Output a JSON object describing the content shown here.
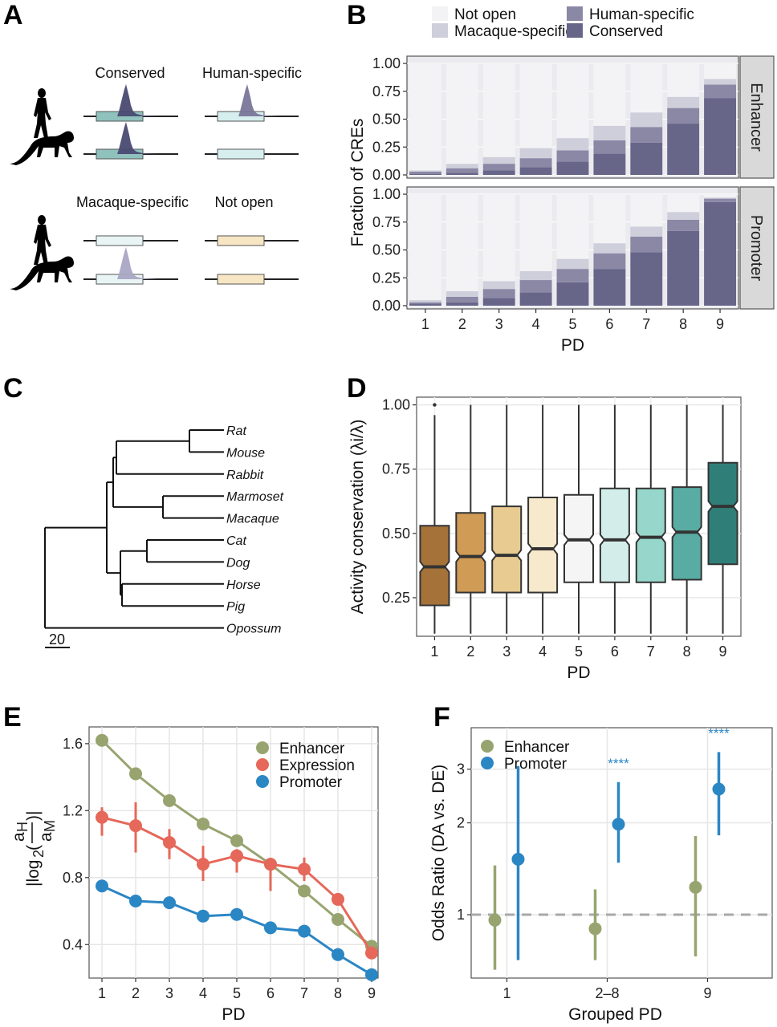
{
  "panels": {
    "A": {
      "letter": "A"
    },
    "B": {
      "letter": "B"
    },
    "C": {
      "letter": "C"
    },
    "D": {
      "letter": "D"
    },
    "E": {
      "letter": "E"
    },
    "F": {
      "letter": "F"
    }
  },
  "panelA": {
    "categories": [
      {
        "label": "Conserved",
        "human_peak": true,
        "macaque_peak": true,
        "box_color": "#8fc1bd",
        "peak_color": "#4a4a72"
      },
      {
        "label": "Human-specific",
        "human_peak": true,
        "macaque_peak": false,
        "box_color": "#d6eeee",
        "peak_color": "#7a7699"
      },
      {
        "label": "Macaque-specific",
        "human_peak": false,
        "macaque_peak": true,
        "box_color": "#e9f5f5",
        "peak_color": "#a9a6c4"
      },
      {
        "label": "Not open",
        "human_peak": false,
        "macaque_peak": false,
        "box_color": "#f6e6c4",
        "peak_color": ""
      }
    ],
    "species": [
      "human-silhouette",
      "macaque-silhouette"
    ]
  },
  "chart_data": [
    {
      "id": "B",
      "type": "bar",
      "stacked": true,
      "title": "",
      "xlabel": "PD",
      "ylabel": "Fraction of CREs",
      "ylim": [
        0,
        1
      ],
      "yticks": [
        "0.00",
        "0.25",
        "0.50",
        "0.75",
        "1.00"
      ],
      "categories": [
        "1",
        "2",
        "3",
        "4",
        "5",
        "6",
        "7",
        "8",
        "9"
      ],
      "legend": {
        "placement": "top",
        "entries": [
          {
            "name": "Not open",
            "color": "#f3f3f6"
          },
          {
            "name": "Human-specific",
            "color": "#8b88a6"
          },
          {
            "name": "Macaque-specific",
            "color": "#cfcedb"
          },
          {
            "name": "Conserved",
            "color": "#676689"
          }
        ]
      },
      "facets": [
        {
          "name": "Enhancer",
          "series": [
            {
              "name": "Conserved",
              "values": [
                0.01,
                0.02,
                0.04,
                0.07,
                0.12,
                0.19,
                0.29,
                0.46,
                0.69
              ]
            },
            {
              "name": "Human-specific",
              "values": [
                0.02,
                0.04,
                0.06,
                0.08,
                0.1,
                0.12,
                0.14,
                0.14,
                0.12
              ]
            },
            {
              "name": "Macaque-specific",
              "values": [
                0.01,
                0.04,
                0.06,
                0.09,
                0.11,
                0.13,
                0.13,
                0.1,
                0.05
              ]
            },
            {
              "name": "Not open",
              "values": [
                0.96,
                0.9,
                0.84,
                0.76,
                0.67,
                0.56,
                0.44,
                0.3,
                0.14
              ]
            }
          ]
        },
        {
          "name": "Promoter",
          "series": [
            {
              "name": "Conserved",
              "values": [
                0.02,
                0.03,
                0.07,
                0.12,
                0.21,
                0.33,
                0.48,
                0.67,
                0.93
              ]
            },
            {
              "name": "Human-specific",
              "values": [
                0.01,
                0.05,
                0.08,
                0.11,
                0.12,
                0.14,
                0.14,
                0.1,
                0.03
              ]
            },
            {
              "name": "Macaque-specific",
              "values": [
                0.02,
                0.05,
                0.07,
                0.08,
                0.09,
                0.09,
                0.09,
                0.07,
                0.01
              ]
            },
            {
              "name": "Not open",
              "values": [
                0.95,
                0.87,
                0.78,
                0.69,
                0.58,
                0.44,
                0.29,
                0.16,
                0.03
              ]
            }
          ]
        }
      ]
    },
    {
      "id": "C",
      "type": "tree",
      "title": "",
      "scale_bar_label": "20",
      "leaves": [
        "Rat",
        "Mouse",
        "Rabbit",
        "Marmoset",
        "Macaque",
        "Cat",
        "Dog",
        "Horse",
        "Pig",
        "Opossum"
      ],
      "newick": "(((((Rat,Mouse),Rabbit),(Marmoset,Macaque)),((Cat,Dog),(Horse,Pig))),Opossum);"
    },
    {
      "id": "D",
      "type": "box",
      "notched": true,
      "xlabel": "PD",
      "ylabel": "Activity conservation (λi/λ)",
      "ylim": [
        0.1,
        1.03
      ],
      "yticks": [
        "0.25",
        "0.50",
        "0.75",
        "1.00"
      ],
      "categories": [
        "1",
        "2",
        "3",
        "4",
        "5",
        "6",
        "7",
        "8",
        "9"
      ],
      "boxes": [
        {
          "pd": "1",
          "whisker_low": 0.11,
          "q1": 0.22,
          "median": 0.37,
          "q3": 0.53,
          "whisker_high": 0.96,
          "outliers": [
            1.0
          ],
          "color": "#a5733a"
        },
        {
          "pd": "2",
          "whisker_low": 0.11,
          "q1": 0.27,
          "median": 0.41,
          "q3": 0.58,
          "whisker_high": 1.0,
          "outliers": [],
          "color": "#d09b55"
        },
        {
          "pd": "3",
          "whisker_low": 0.11,
          "q1": 0.27,
          "median": 0.415,
          "q3": 0.605,
          "whisker_high": 1.0,
          "outliers": [],
          "color": "#e8cb91"
        },
        {
          "pd": "4",
          "whisker_low": 0.11,
          "q1": 0.27,
          "median": 0.44,
          "q3": 0.64,
          "whisker_high": 1.0,
          "outliers": [],
          "color": "#f6e9cc"
        },
        {
          "pd": "5",
          "whisker_low": 0.11,
          "q1": 0.31,
          "median": 0.475,
          "q3": 0.65,
          "whisker_high": 1.0,
          "outliers": [],
          "color": "#f5f5f5"
        },
        {
          "pd": "6",
          "whisker_low": 0.11,
          "q1": 0.31,
          "median": 0.475,
          "q3": 0.675,
          "whisker_high": 1.0,
          "outliers": [],
          "color": "#d3eeea"
        },
        {
          "pd": "7",
          "whisker_low": 0.11,
          "q1": 0.31,
          "median": 0.485,
          "q3": 0.675,
          "whisker_high": 1.0,
          "outliers": [],
          "color": "#97d6ca"
        },
        {
          "pd": "8",
          "whisker_low": 0.11,
          "q1": 0.32,
          "median": 0.505,
          "q3": 0.68,
          "whisker_high": 1.0,
          "outliers": [],
          "color": "#58aca3"
        },
        {
          "pd": "9",
          "whisker_low": 0.11,
          "q1": 0.38,
          "median": 0.605,
          "q3": 0.775,
          "whisker_high": 1.0,
          "outliers": [],
          "color": "#2f7f78"
        }
      ]
    },
    {
      "id": "E",
      "type": "line",
      "xlabel": "PD",
      "ylabel": "|log2(aH/aM)|",
      "ylabel_parts": {
        "abs_open": "|log",
        "sub": "2",
        "num": "a",
        "num_sub": "H",
        "den": "a",
        "den_sub": "M",
        "close": ")|",
        "open": "("
      },
      "ylim": [
        0.2,
        1.7
      ],
      "yticks": [
        "0.4",
        "0.8",
        "1.2",
        "1.6"
      ],
      "x": [
        "1",
        "2",
        "3",
        "4",
        "5",
        "6",
        "7",
        "8",
        "9"
      ],
      "legend": {
        "placement": "top-right"
      },
      "series": [
        {
          "name": "Enhancer",
          "color": "#98a470",
          "values": [
            1.62,
            1.42,
            1.26,
            1.12,
            1.02,
            0.88,
            0.72,
            0.55,
            0.39
          ],
          "err_low": null,
          "err_high": null
        },
        {
          "name": "Expression",
          "color": "#e5685a",
          "values": [
            1.16,
            1.11,
            1.01,
            0.88,
            0.93,
            0.88,
            0.85,
            0.67,
            0.35
          ],
          "err_low": [
            1.05,
            0.95,
            0.91,
            0.78,
            0.83,
            0.72,
            0.78,
            0.67,
            0.35
          ],
          "err_high": [
            1.22,
            1.25,
            1.09,
            0.99,
            0.97,
            0.91,
            0.92,
            0.67,
            0.35
          ]
        },
        {
          "name": "Promoter",
          "color": "#2b86c4",
          "values": [
            0.75,
            0.66,
            0.65,
            0.57,
            0.58,
            0.5,
            0.48,
            0.34,
            0.22
          ],
          "err_low": null,
          "err_high": null
        }
      ]
    },
    {
      "id": "F",
      "type": "scatter",
      "xlabel": "Grouped PD",
      "ylabel": "Odds Ratio (DA vs. DE)",
      "yscale": "log",
      "ylim": [
        0.62,
        4.1
      ],
      "yticks": [
        "1",
        "2",
        "3"
      ],
      "reference_line": 1,
      "categories": [
        "1",
        "2–8",
        "9"
      ],
      "legend": {
        "placement": "top-left"
      },
      "series": [
        {
          "name": "Enhancer",
          "color": "#98a470",
          "values": [
            0.96,
            0.9,
            1.23
          ],
          "ci_low": [
            0.66,
            0.71,
            0.73
          ],
          "ci_high": [
            1.45,
            1.21,
            1.81
          ]
        },
        {
          "name": "Promoter",
          "color": "#2b86c4",
          "values": [
            1.52,
            1.98,
            2.58
          ],
          "ci_low": [
            0.71,
            1.48,
            1.82
          ],
          "ci_high": [
            3.07,
            2.72,
            3.41
          ]
        }
      ],
      "annotations": [
        {
          "category": "2–8",
          "text": "****",
          "color": "#2b86c4"
        },
        {
          "category": "9",
          "text": "****",
          "color": "#2b86c4"
        }
      ]
    }
  ]
}
